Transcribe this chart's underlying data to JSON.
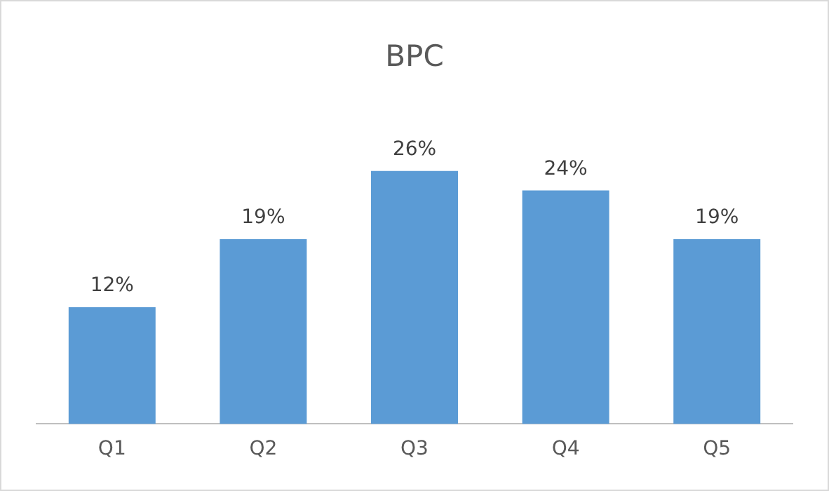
{
  "chart_data": {
    "type": "bar",
    "title": "BPC",
    "categories": [
      "Q1",
      "Q2",
      "Q3",
      "Q4",
      "Q5"
    ],
    "values": [
      12,
      19,
      26,
      24,
      19
    ],
    "value_labels": [
      "12%",
      "19%",
      "26%",
      "24%",
      "19%"
    ],
    "color": "#5b9bd5",
    "tick_labels": "x",
    "grid": false,
    "legend": false
  }
}
